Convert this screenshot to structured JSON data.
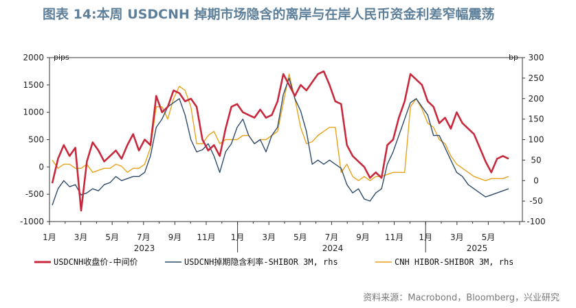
{
  "title": "图表 14:本周 USDCNH 掉期市场隐含的离岸与在岸人民币资金利差窄幅震荡",
  "source": "资料来源：Macrobond，Bloomberg，兴业研究",
  "chart_data": {
    "type": "line",
    "left_axis": {
      "unit": "pips",
      "ticks": [
        "2000",
        "1500",
        "1000",
        "500",
        "0",
        "-500",
        "-1000"
      ],
      "min": -1000,
      "max": 2000
    },
    "right_axis": {
      "unit": "bp",
      "ticks": [
        "300",
        "250",
        "200",
        "150",
        "100",
        "50",
        "0",
        "-50",
        "-100"
      ],
      "min": -100,
      "max": 300
    },
    "x_ticks": [
      "1月",
      "3月",
      "5月",
      "7月",
      "9月",
      "11月",
      "1月",
      "3月",
      "5月",
      "7月",
      "9月",
      "11月",
      "1月",
      "3月",
      "5月"
    ],
    "year_labels": [
      "2023",
      "2024",
      "2025"
    ],
    "series": [
      {
        "name": "USDCNH收盘价-中间价",
        "axis": "left",
        "color": "#c8283c",
        "values": [
          -300,
          150,
          400,
          200,
          350,
          -800,
          100,
          450,
          300,
          100,
          200,
          300,
          150,
          400,
          600,
          300,
          500,
          400,
          1300,
          1000,
          1100,
          1400,
          1350,
          1200,
          1250,
          1100,
          500,
          300,
          400,
          200,
          700,
          1100,
          1150,
          1000,
          950,
          900,
          1050,
          900,
          950,
          1200,
          1700,
          1500,
          1300,
          1500,
          1400,
          1550,
          1700,
          1750,
          1500,
          1200,
          1150,
          400,
          200,
          100,
          0,
          -200,
          -100,
          -200,
          400,
          500,
          900,
          1200,
          1700,
          1600,
          1500,
          1200,
          1100,
          800,
          900,
          700,
          1000,
          800,
          700,
          600,
          350,
          100,
          -100,
          150,
          200,
          150
        ]
      },
      {
        "name": "USDCNH掉期隐含利率-SHIBOR 3M, rhs",
        "axis": "right",
        "color": "#2c4a6b",
        "values": [
          -60,
          -20,
          0,
          -15,
          -10,
          -35,
          -30,
          -20,
          -25,
          -10,
          -5,
          10,
          0,
          5,
          10,
          10,
          20,
          60,
          130,
          150,
          180,
          190,
          200,
          160,
          100,
          70,
          75,
          90,
          60,
          20,
          70,
          90,
          130,
          150,
          110,
          90,
          100,
          70,
          110,
          130,
          210,
          250,
          200,
          170,
          120,
          40,
          50,
          40,
          50,
          40,
          30,
          -10,
          -30,
          -20,
          -45,
          -50,
          -30,
          -20,
          40,
          70,
          110,
          150,
          190,
          200,
          180,
          160,
          110,
          110,
          80,
          50,
          20,
          10,
          -10,
          -20,
          -30,
          -40,
          -35,
          -30,
          -25,
          -20
        ]
      },
      {
        "name": "CNH HIBOR-SHIBOR 3M, rhs",
        "axis": "right",
        "color": "#e8a21c",
        "values": [
          50,
          30,
          40,
          40,
          30,
          30,
          40,
          20,
          25,
          30,
          30,
          40,
          35,
          20,
          30,
          30,
          40,
          80,
          180,
          180,
          150,
          200,
          230,
          220,
          180,
          90,
          90,
          110,
          120,
          90,
          100,
          100,
          100,
          110,
          110,
          90,
          100,
          100,
          110,
          120,
          190,
          260,
          200,
          130,
          90,
          95,
          110,
          120,
          130,
          130,
          20,
          40,
          10,
          0,
          10,
          0,
          10,
          10,
          15,
          20,
          20,
          20,
          180,
          200,
          175,
          140,
          130,
          100,
          90,
          60,
          40,
          30,
          20,
          10,
          5,
          0,
          5,
          5,
          5,
          10
        ]
      }
    ]
  }
}
